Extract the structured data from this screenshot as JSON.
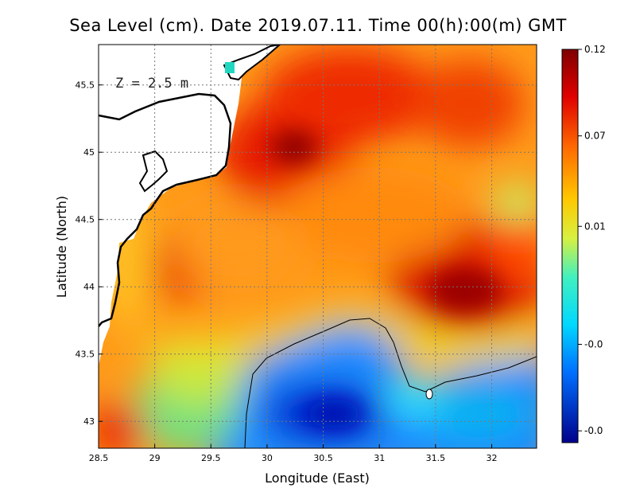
{
  "title": "Sea Level (cm). Date 2019.07.11. Time 00(h):00(m) GMT",
  "annotation": "Z = 2.5 m",
  "chart_data": {
    "type": "heatmap",
    "xlabel": "Longitude (East)",
    "ylabel": "Latitude (North)",
    "xlim": [
      28.5,
      32.4
    ],
    "ylim": [
      42.8,
      45.8
    ],
    "x_ticks": [
      "28.5",
      "29",
      "29.5",
      "30",
      "30.5",
      "31",
      "31.5",
      "32"
    ],
    "x_tick_values": [
      28.5,
      29,
      29.5,
      30,
      30.5,
      31,
      31.5,
      32
    ],
    "y_ticks": [
      "43",
      "43.5",
      "44",
      "44.5",
      "45",
      "45.5"
    ],
    "y_tick_values": [
      43,
      43.5,
      44,
      44.5,
      45,
      45.5
    ],
    "grid": true,
    "colorbar": {
      "labels": [
        "0.12",
        "0.07",
        "0.01",
        "-0.0",
        "-0.0"
      ],
      "positions": [
        1.0,
        0.78,
        0.55,
        0.25,
        0.03
      ]
    },
    "zero_contour": true
  }
}
